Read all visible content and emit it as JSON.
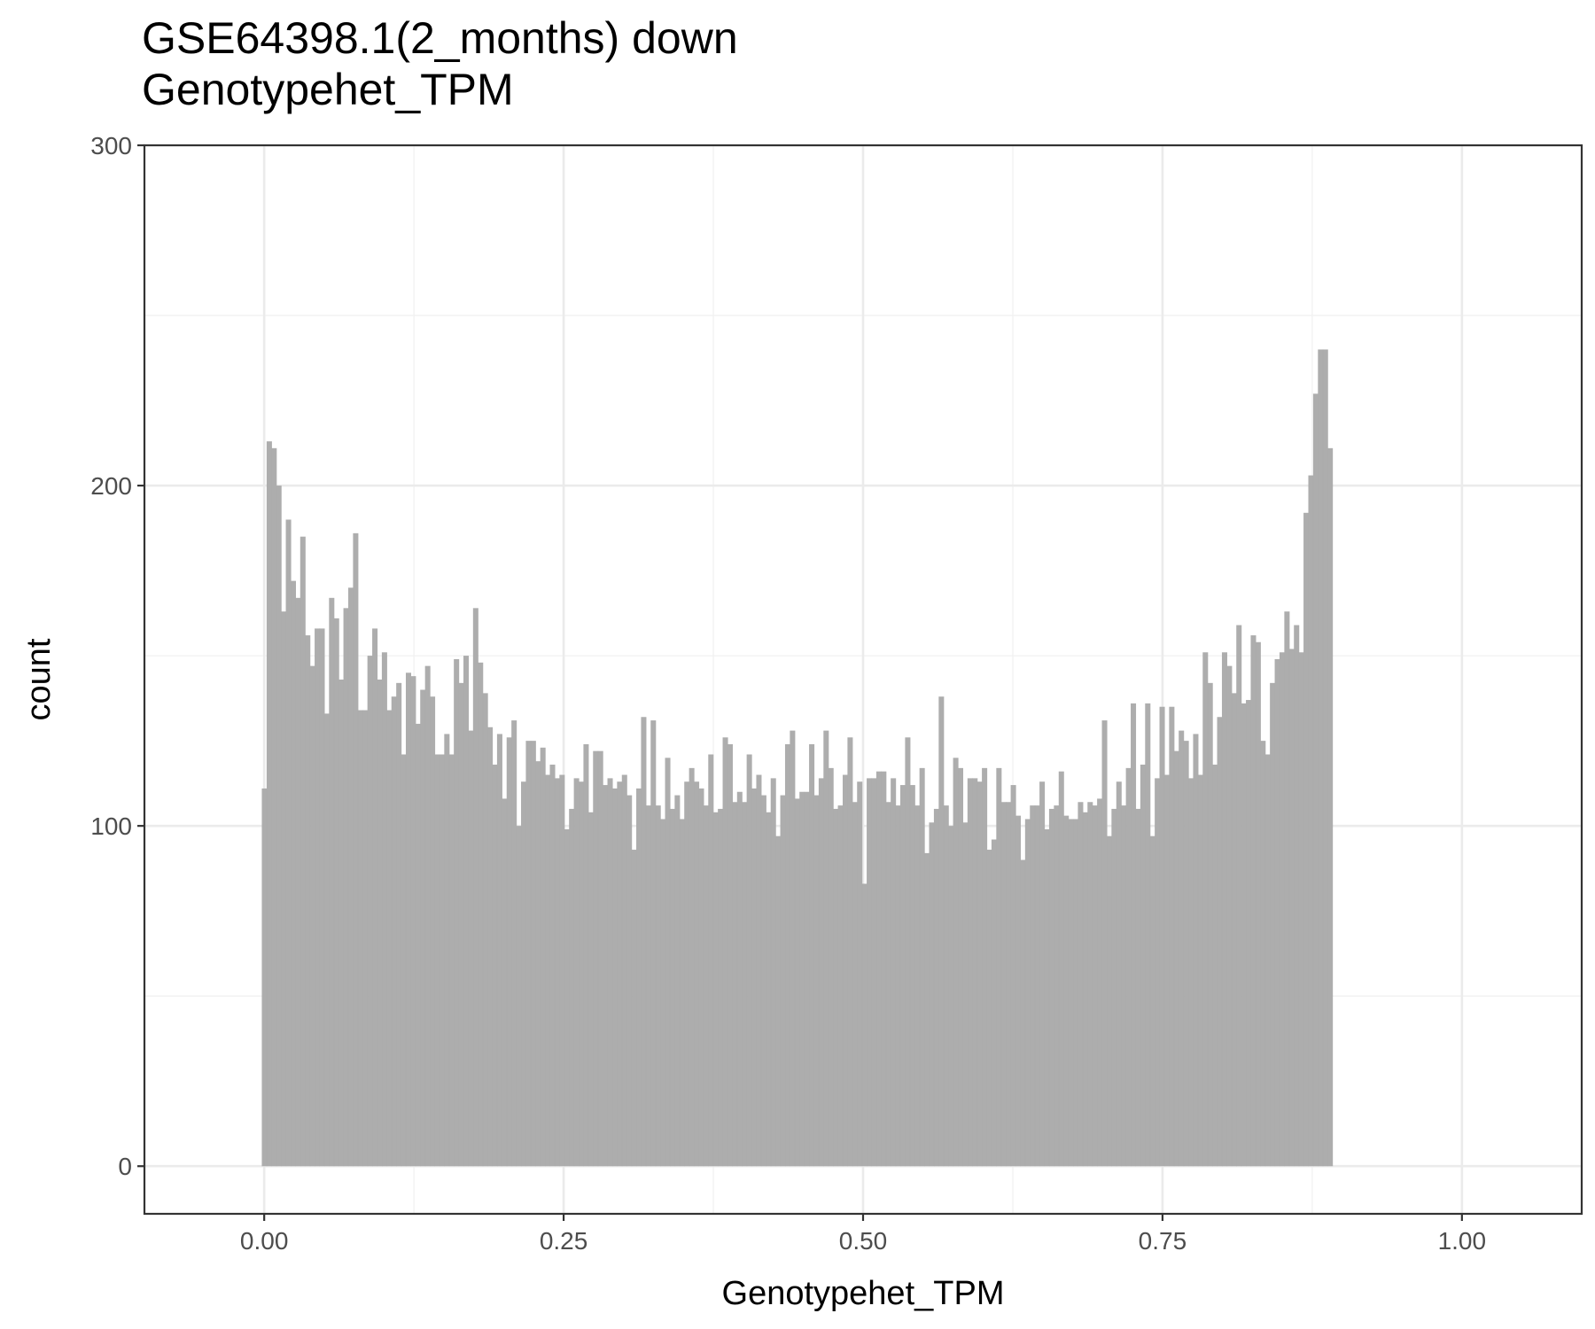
{
  "chart_data": {
    "type": "bar",
    "title": "GSE64398.1(2_months) down",
    "subtitle": "Genotypehet_TPM",
    "xlabel": "Genotypehet_TPM",
    "ylabel": "count",
    "xlim": [
      -0.1,
      1.1
    ],
    "ylim": [
      -14,
      300
    ],
    "x_ticks": [
      0.0,
      0.25,
      0.5,
      0.75,
      1.0
    ],
    "x_tick_labels": [
      "0.00",
      "0.25",
      "0.50",
      "0.75",
      "1.00"
    ],
    "y_ticks": [
      0,
      100,
      200,
      300
    ],
    "y_tick_labels": [
      "0",
      "100",
      "200",
      "300"
    ],
    "bin_start": -0.002,
    "bin_width": 0.004008,
    "bar_color": "#ababab",
    "grid": true,
    "values": [
      111,
      213,
      211,
      200,
      163,
      190,
      172,
      167,
      185,
      156,
      147,
      158,
      158,
      133,
      167,
      161,
      143,
      164,
      170,
      186,
      134,
      134,
      150,
      158,
      143,
      151,
      134,
      138,
      142,
      121,
      145,
      144,
      130,
      140,
      147,
      138,
      121,
      121,
      127,
      121,
      149,
      142,
      150,
      128,
      164,
      148,
      139,
      129,
      118,
      127,
      108,
      126,
      131,
      100,
      113,
      125,
      125,
      119,
      123,
      115,
      118,
      114,
      115,
      99,
      105,
      114,
      113,
      124,
      104,
      122,
      122,
      112,
      114,
      111,
      113,
      115,
      109,
      93,
      111,
      132,
      106,
      131,
      106,
      102,
      120,
      105,
      109,
      102,
      113,
      117,
      113,
      111,
      106,
      121,
      104,
      105,
      126,
      124,
      107,
      110,
      107,
      121,
      111,
      115,
      109,
      104,
      114,
      97,
      109,
      124,
      128,
      108,
      110,
      110,
      124,
      109,
      114,
      128,
      117,
      105,
      106,
      115,
      126,
      107,
      113,
      83,
      114,
      114,
      116,
      116,
      107,
      114,
      106,
      112,
      126,
      112,
      106,
      117,
      92,
      101,
      105,
      138,
      106,
      100,
      120,
      117,
      101,
      114,
      114,
      113,
      117,
      93,
      96,
      117,
      107,
      107,
      112,
      103,
      90,
      102,
      106,
      106,
      113,
      99,
      105,
      106,
      116,
      103,
      102,
      102,
      107,
      104,
      107,
      106,
      108,
      131,
      97,
      105,
      113,
      106,
      117,
      136,
      105,
      118,
      136,
      97,
      114,
      135,
      115,
      135,
      122,
      128,
      125,
      114,
      127,
      115,
      151,
      142,
      118,
      132,
      151,
      147,
      139,
      159,
      136,
      137,
      156,
      154,
      125,
      121,
      142,
      149,
      151,
      163,
      152,
      159,
      151,
      192,
      203,
      227,
      240,
      240,
      211
    ]
  }
}
